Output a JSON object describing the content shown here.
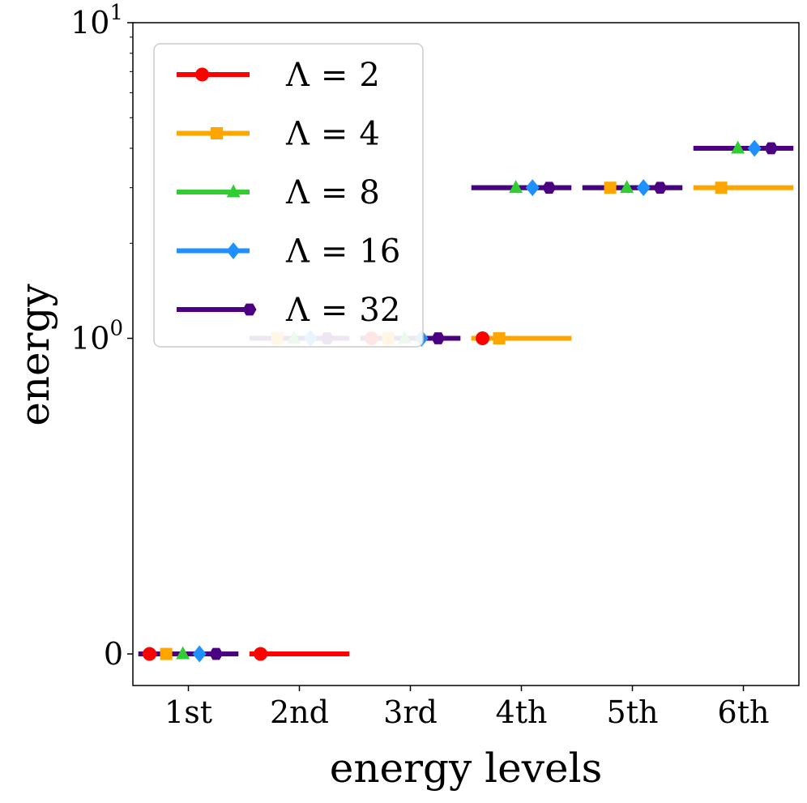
{
  "chart_data": {
    "type": "line",
    "title": "",
    "xlabel": "energy levels",
    "ylabel": "energy",
    "yscale": "symlog",
    "ylim": [
      -0.1,
      10
    ],
    "categories": [
      "1st",
      "2nd",
      "3rd",
      "4th",
      "5th",
      "6th"
    ],
    "y_ticks": [
      {
        "value": 0,
        "base": "0",
        "exp": ""
      },
      {
        "value": 1,
        "base": "10",
        "exp": "0"
      },
      {
        "value": 10,
        "base": "10",
        "exp": "1"
      }
    ],
    "legend_position": "top-left",
    "series": [
      {
        "name": "Λ = 2",
        "symbol": "Λ",
        "eq": "=",
        "num": "2",
        "color": "#ff0000",
        "marker": "circle",
        "offset": -0.35,
        "values": [
          0,
          0,
          1,
          1,
          null,
          null
        ]
      },
      {
        "name": "Λ = 4",
        "symbol": "Λ",
        "eq": "=",
        "num": "4",
        "color": "#ffa500",
        "marker": "square",
        "offset": -0.2,
        "values": [
          0,
          1,
          1,
          1,
          3,
          3
        ]
      },
      {
        "name": "Λ = 8",
        "symbol": "Λ",
        "eq": "=",
        "num": "8",
        "color": "#32cd32",
        "marker": "triangle",
        "offset": -0.05,
        "values": [
          0,
          1,
          1,
          3,
          3,
          4
        ]
      },
      {
        "name": "Λ = 16",
        "symbol": "Λ",
        "eq": "=",
        "num": "16",
        "color": "#1e90ff",
        "marker": "diamond",
        "offset": 0.1,
        "values": [
          0,
          1,
          1,
          3,
          3,
          4
        ]
      },
      {
        "name": "Λ = 32",
        "symbol": "Λ",
        "eq": "=",
        "num": "32",
        "color": "#4b0082",
        "marker": "hexagon",
        "offset": 0.25,
        "values": [
          0,
          1,
          1,
          3,
          3,
          4
        ]
      }
    ]
  }
}
